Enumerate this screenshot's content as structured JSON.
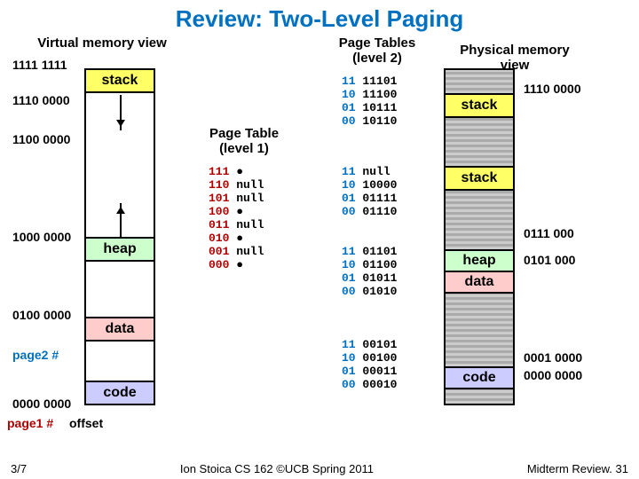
{
  "title": "Review: Two-Level Paging",
  "title_color": "#0070c0",
  "headers": {
    "virtual": "Virtual memory view",
    "level2": "Page Tables\n(level 2)",
    "physical": "Physical memory view"
  },
  "level1_label": "Page Table\n(level 1)",
  "virtual": {
    "a0": "1111 1111",
    "a1": "1110 0000",
    "a2": "1100 0000",
    "a3": "1000 0000",
    "a4": "0100 0000",
    "a5": "0000 0000",
    "segs": {
      "stack": {
        "label": "stack",
        "fill": "#ffff66"
      },
      "heap": {
        "label": "heap",
        "fill": "#ccffcc"
      },
      "data": {
        "label": "data",
        "fill": "#ffcccc"
      },
      "code": {
        "label": "code",
        "fill": "#ccccff"
      }
    }
  },
  "level1": {
    "rows": [
      {
        "idx": "111",
        "val": "●"
      },
      {
        "idx": "110",
        "val": "null"
      },
      {
        "idx": "101",
        "val": "null"
      },
      {
        "idx": "100",
        "val": "●"
      },
      {
        "idx": "011",
        "val": "null"
      },
      {
        "idx": "010",
        "val": "●"
      },
      {
        "idx": "001",
        "val": "null"
      },
      {
        "idx": "000",
        "val": "●"
      }
    ]
  },
  "level2": {
    "t0": [
      {
        "idx": "11",
        "val": "11101"
      },
      {
        "idx": "10",
        "val": "11100"
      },
      {
        "idx": "01",
        "val": "10111"
      },
      {
        "idx": "00",
        "val": "10110"
      }
    ],
    "t1": [
      {
        "idx": "11",
        "val": "null"
      },
      {
        "idx": "10",
        "val": "10000"
      },
      {
        "idx": "01",
        "val": "01111"
      },
      {
        "idx": "00",
        "val": "01110"
      }
    ],
    "t2": [
      {
        "idx": "11",
        "val": "01101"
      },
      {
        "idx": "10",
        "val": "01100"
      },
      {
        "idx": "01",
        "val": "01011"
      },
      {
        "idx": "00",
        "val": "01010"
      }
    ],
    "t3": [
      {
        "idx": "11",
        "val": "00101"
      },
      {
        "idx": "10",
        "val": "00100"
      },
      {
        "idx": "01",
        "val": "00011"
      },
      {
        "idx": "00",
        "val": "00010"
      }
    ]
  },
  "physical": {
    "a0": "1110 0000",
    "a1": "0111 000",
    "a2": "0101 000",
    "a3": "0001 0000",
    "a4": "0000 0000",
    "segs": {
      "stack1": {
        "label": "stack",
        "fill": "#ffff66"
      },
      "stack2": {
        "label": "stack",
        "fill": "#ffff66"
      },
      "heap": {
        "label": "heap",
        "fill": "#ccffcc"
      },
      "data": {
        "label": "data",
        "fill": "#ffcccc"
      },
      "code": {
        "label": "code",
        "fill": "#ccccff"
      }
    }
  },
  "labels": {
    "page1": "page1 #",
    "page2": "page2 #",
    "offset": "offset"
  },
  "footer": {
    "left": "3/7",
    "center": "Ion Stoica CS 162 ©UCB Spring 2011",
    "right": "Midterm Review. 31"
  }
}
